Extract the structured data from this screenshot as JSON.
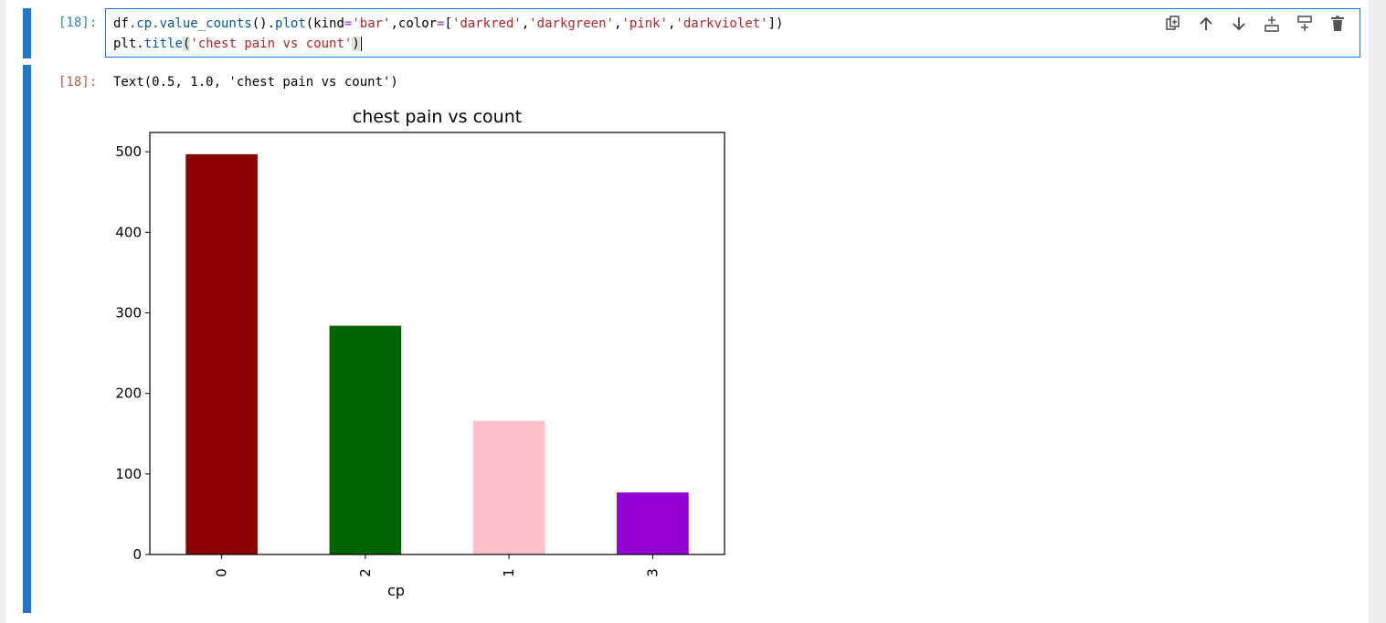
{
  "input_cell": {
    "prompt": "[18]:",
    "line1": {
      "obj": "df",
      "attr1": ".cp.",
      "fn1": "value_counts",
      "mid": "().",
      "fn2": "plot",
      "open": "(kind",
      "eq1": "=",
      "str1": "'bar'",
      "sep1": ",color",
      "eq2": "=",
      "lb": "[",
      "s_darkred": "'darkred'",
      "c1": ",",
      "s_darkgreen": "'darkgreen'",
      "c2": ",",
      "s_pink": "'pink'",
      "c3": ",",
      "s_darkviolet": "'darkviolet'",
      "rb": "])"
    },
    "line2": {
      "obj": "plt",
      "dot": ".",
      "fn": "title",
      "open": "(",
      "str": "'chest pain vs count'",
      "close": ")"
    }
  },
  "toolbar": {
    "icons": [
      "duplicate-icon",
      "move-up-icon",
      "move-down-icon",
      "insert-above-icon",
      "insert-below-icon",
      "delete-icon"
    ]
  },
  "output_cell": {
    "prompt": "[18]:",
    "text": "Text(0.5, 1.0, 'chest pain vs count')"
  },
  "chart_data": {
    "type": "bar",
    "title": "chest pain vs count",
    "xlabel": "cp",
    "ylabel": "",
    "categories": [
      "0",
      "2",
      "1",
      "3"
    ],
    "values": [
      497,
      284,
      166,
      77
    ],
    "colors": [
      "#8b0000",
      "#006400",
      "#ffc0cb",
      "#9400d3"
    ],
    "ylim": [
      0,
      524
    ],
    "yticks": [
      0,
      100,
      200,
      300,
      400,
      500
    ],
    "grid": false,
    "xtick_rotation": 90
  }
}
